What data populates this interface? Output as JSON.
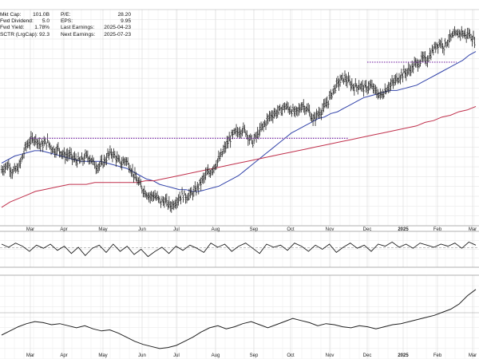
{
  "stats": {
    "left": [
      {
        "label": "Mkt Cap:",
        "value": "101.0B"
      },
      {
        "label": "Fwd Dividend:",
        "value": "5.0"
      },
      {
        "label": "Fwd Yield:",
        "value": "1.78%"
      },
      {
        "label": "SCTR (LrgCap):",
        "value": "92.3"
      }
    ],
    "right": [
      {
        "label": "P/E:",
        "value": "28.20"
      },
      {
        "label": "EPS:",
        "value": "9.95"
      },
      {
        "label": "Last Earnings:",
        "value": "2025-04-23"
      },
      {
        "label": "Next Earnings:",
        "value": "2025-07-23"
      }
    ]
  },
  "chart_data": {
    "type": "line",
    "title": "",
    "xlabel": "",
    "ylabel": "",
    "months": [
      "Mar",
      "Apr",
      "May",
      "Jun",
      "Jul",
      "Aug",
      "Sep",
      "Oct",
      "Nov",
      "Dec",
      "2025",
      "Feb",
      "Mar"
    ],
    "grid": true,
    "panels": [
      {
        "name": "price",
        "type": "ohlc",
        "series": [
          {
            "type": "ohlc",
            "color": "#222222",
            "values": [
              -0.2,
              0.0,
              0.1,
              -0.3,
              -0.2,
              0.0,
              0.6,
              1.2,
              1.4,
              1.6,
              1.5,
              1.2,
              1.3,
              1.4,
              1.1,
              0.9,
              1.0,
              0.8,
              0.6,
              0.7,
              0.5,
              0.4,
              0.3,
              0.4,
              0.6,
              0.5,
              0.2,
              0.0,
              0.1,
              0.3,
              0.6,
              0.8,
              0.6,
              0.3,
              0.2,
              0.4,
              0.1,
              -0.3,
              -0.7,
              -1.0,
              -1.3,
              -1.5,
              -1.7,
              -1.6,
              -1.8,
              -2.0,
              -1.9,
              -2.1,
              -2.2,
              -2.0,
              -1.8,
              -1.6,
              -1.7,
              -1.6,
              -1.5,
              -1.3,
              -1.0,
              -0.7,
              -0.4,
              -0.3,
              0.0,
              0.3,
              0.6,
              1.0,
              1.4,
              1.7,
              1.9,
              2.0,
              2.1,
              2.0,
              1.6,
              1.4,
              1.7,
              2.0,
              2.3,
              2.6,
              2.9,
              3.0,
              3.1,
              3.2,
              3.4,
              3.3,
              3.2,
              3.0,
              3.2,
              3.5,
              3.3,
              3.1,
              2.6,
              2.9,
              3.1,
              3.3,
              3.6,
              4.0,
              4.4,
              4.7,
              4.9,
              5.0,
              4.8,
              4.6,
              4.5,
              4.6,
              4.5,
              4.4,
              4.6,
              4.4,
              4.2,
              4.0,
              4.2,
              4.5,
              4.6,
              4.8,
              5.0,
              5.2,
              5.3,
              5.4,
              5.6,
              5.8,
              5.9,
              6.1,
              6.0,
              6.3,
              6.6,
              6.9,
              7.0,
              6.8,
              7.1,
              7.3,
              7.4,
              7.5,
              7.6,
              7.4,
              7.5,
              7.3,
              7.0
            ]
          },
          {
            "name": "",
            "type": "sma-50",
            "color": "#3344aa",
            "values": [
              0.2,
              0.4,
              0.6,
              0.7,
              0.8,
              0.9,
              0.9,
              0.8,
              0.7,
              0.6,
              0.5,
              0.4,
              0.3,
              0.3,
              0.3,
              0.3,
              0.2,
              0.1,
              0.0,
              -0.1,
              -0.3,
              -0.5,
              -0.7,
              -0.8,
              -1.0,
              -1.1,
              -1.2,
              -1.3,
              -1.3,
              -1.4,
              -1.4,
              -1.3,
              -1.2,
              -1.1,
              -0.9,
              -0.7,
              -0.5,
              -0.2,
              0.1,
              0.4,
              0.7,
              1.0,
              1.3,
              1.6,
              1.9,
              2.1,
              2.3,
              2.5,
              2.7,
              2.8,
              3.0,
              3.1,
              3.3,
              3.5,
              3.7,
              3.9,
              4.0,
              4.1,
              4.2,
              4.3,
              4.3,
              4.4,
              4.5,
              4.6,
              4.8,
              5.0,
              5.2,
              5.4,
              5.6,
              5.8,
              6.0,
              6.3,
              6.5
            ]
          },
          {
            "name": "",
            "type": "sma-200",
            "color": "#c0304c",
            "values": [
              -2.3,
              -2.0,
              -1.8,
              -1.6,
              -1.4,
              -1.3,
              -1.2,
              -1.1,
              -1.0,
              -1.0,
              -1.0,
              -0.9,
              -0.9,
              -0.9,
              -0.9,
              -0.9,
              -0.9,
              -0.8,
              -0.8,
              -0.7,
              -0.6,
              -0.5,
              -0.4,
              -0.3,
              -0.2,
              -0.1,
              0.0,
              0.1,
              0.2,
              0.3,
              0.4,
              0.5,
              0.6,
              0.7,
              0.8,
              0.9,
              1.0,
              1.1,
              1.2,
              1.3,
              1.4,
              1.5,
              1.6,
              1.7,
              1.8,
              1.9,
              2.0,
              2.1,
              2.2,
              2.3,
              2.5,
              2.6,
              2.8,
              2.9,
              3.1,
              3.2,
              3.4
            ]
          }
        ],
        "annotations": [
          {
            "type": "horizontal-dotted-line",
            "color": "#7b2fa8",
            "level": 1.6,
            "from": "Mar",
            "to": "Nov"
          },
          {
            "type": "horizontal-dotted-line",
            "color": "#7b2fa8",
            "level": 5.9,
            "from": "Dec",
            "to": "Feb"
          }
        ]
      },
      {
        "name": "oscillator",
        "type": "line",
        "series": [
          {
            "color": "#222222",
            "values": [
              0.5,
              0.2,
              0.6,
              0.3,
              -0.2,
              0.4,
              0.1,
              0.5,
              -0.1,
              0.3,
              -0.4,
              0.2,
              -0.6,
              0.1,
              0.4,
              -0.3,
              0.5,
              -0.2,
              0.3,
              -0.5,
              0.0,
              -0.7,
              -0.2,
              0.2,
              -0.4,
              0.3,
              -0.1,
              0.4,
              0.1,
              -0.3,
              0.6,
              0.2,
              0.5,
              -0.2,
              0.3,
              0.6,
              0.1,
              -0.4,
              0.5,
              0.2,
              0.4,
              -0.1,
              0.6,
              0.3,
              -0.2,
              0.4,
              0.0,
              0.5,
              -0.3,
              0.2,
              0.6,
              0.1,
              0.4,
              -0.2,
              0.5,
              0.3,
              0.7,
              0.2,
              0.5,
              0.1,
              0.6,
              0.4,
              0.2,
              0.5,
              0.3,
              0.6,
              0.1,
              0.7,
              0.4
            ]
          }
        ]
      },
      {
        "name": "relative-strength",
        "type": "line",
        "series": [
          {
            "color": "#222222",
            "values": [
              0.0,
              0.4,
              0.8,
              1.1,
              1.3,
              1.2,
              1.0,
              1.1,
              0.9,
              0.7,
              0.9,
              0.6,
              0.4,
              0.5,
              0.2,
              -0.2,
              -0.6,
              -0.9,
              -1.1,
              -1.3,
              -1.2,
              -1.0,
              -0.6,
              -0.2,
              0.3,
              0.7,
              0.9,
              0.6,
              0.8,
              1.1,
              1.3,
              1.0,
              0.7,
              1.0,
              1.3,
              1.6,
              1.4,
              1.2,
              0.9,
              1.1,
              1.0,
              0.8,
              0.7,
              0.9,
              0.8,
              0.6,
              0.8,
              1.0,
              1.1,
              1.3,
              1.5,
              1.7,
              1.9,
              2.2,
              2.5,
              3.0,
              3.8,
              4.4
            ]
          }
        ]
      }
    ]
  }
}
